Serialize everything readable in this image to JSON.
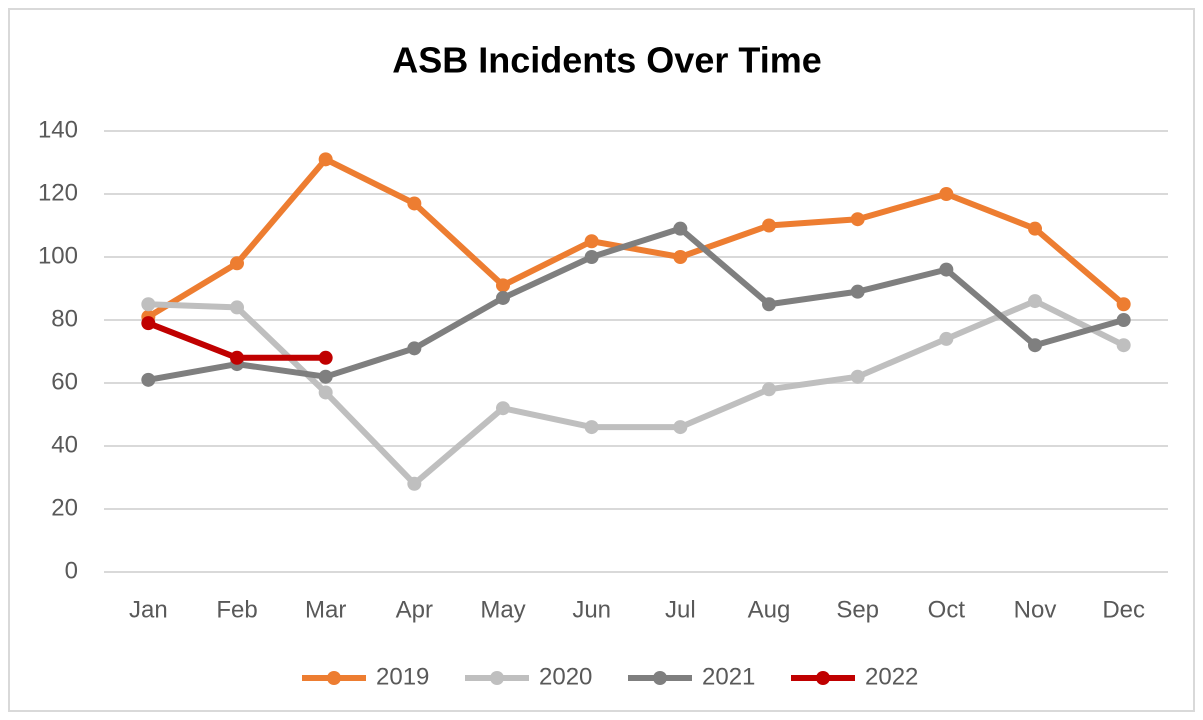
{
  "chart_data": {
    "type": "line",
    "title": "ASB Incidents Over Time",
    "categories": [
      "Jan",
      "Feb",
      "Mar",
      "Apr",
      "May",
      "Jun",
      "Jul",
      "Aug",
      "Sep",
      "Oct",
      "Nov",
      "Dec"
    ],
    "series": [
      {
        "name": "2019",
        "color": "#ED7D31",
        "values": [
          81,
          98,
          131,
          117,
          91,
          105,
          100,
          110,
          112,
          120,
          109,
          85
        ]
      },
      {
        "name": "2020",
        "color": "#BFBFBF",
        "values": [
          85,
          84,
          57,
          28,
          52,
          46,
          46,
          58,
          62,
          74,
          86,
          72
        ]
      },
      {
        "name": "2021",
        "color": "#7F7F7F",
        "values": [
          61,
          66,
          62,
          71,
          87,
          100,
          109,
          85,
          89,
          96,
          72,
          80
        ]
      },
      {
        "name": "2022",
        "color": "#C00000",
        "values": [
          79,
          68,
          68,
          null,
          null,
          null,
          null,
          null,
          null,
          null,
          null,
          null
        ]
      }
    ],
    "ylim": [
      0,
      140
    ],
    "yticks": [
      0,
      20,
      40,
      60,
      80,
      100,
      120,
      140
    ],
    "grid": true,
    "legend": "bottom"
  }
}
